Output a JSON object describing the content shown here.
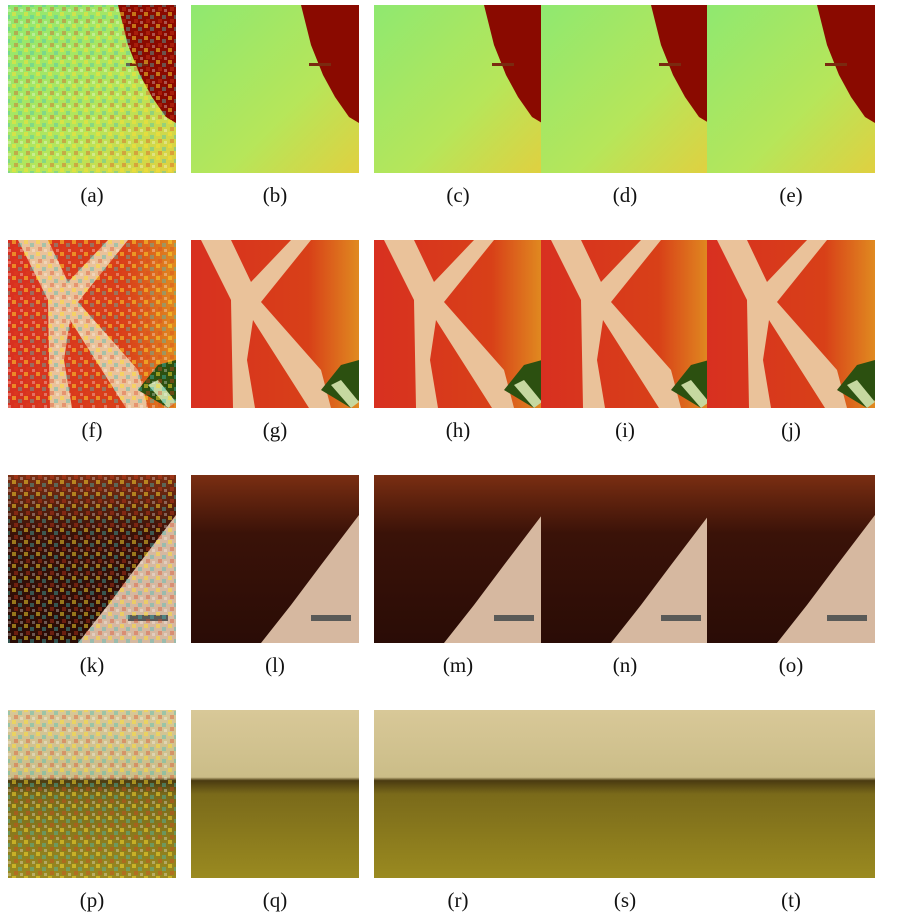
{
  "figure": {
    "captions": [
      [
        "(a)",
        "(b)",
        "(c)",
        "(d)",
        "(e)"
      ],
      [
        "(f)",
        "(g)",
        "(h)",
        "(i)",
        "(j)"
      ],
      [
        "(k)",
        "(l)",
        "(m)",
        "(n)",
        "(o)"
      ],
      [
        "(p)",
        "(q)",
        "(r)",
        "(s)",
        "(t)"
      ]
    ]
  }
}
